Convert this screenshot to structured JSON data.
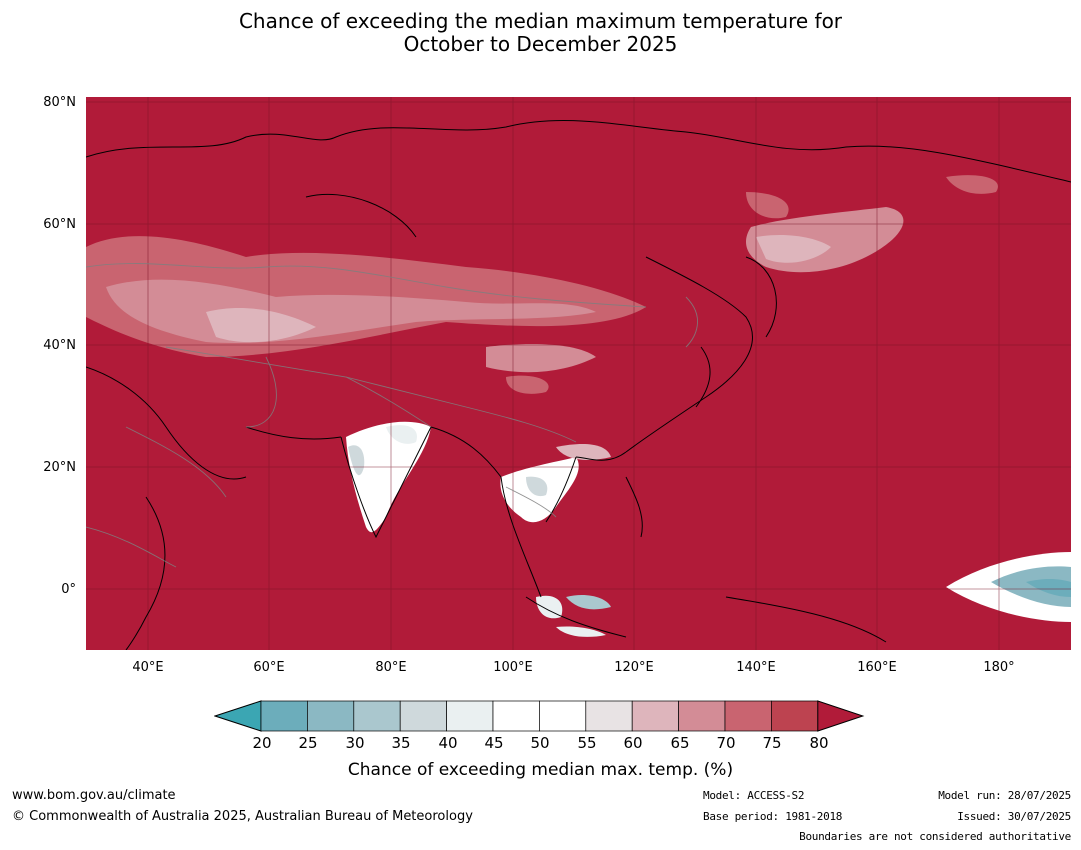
{
  "title": {
    "line1": "Chance of exceeding the median maximum temperature for",
    "line2": "October to December 2025"
  },
  "map": {
    "lat_labels": [
      "80°N",
      "60°N",
      "40°N",
      "20°N",
      "0°"
    ],
    "lon_labels": [
      "40°E",
      "60°E",
      "80°E",
      "100°E",
      "120°E",
      "140°E",
      "160°E",
      "180°"
    ],
    "base_color": "#b11b39"
  },
  "colorbar": {
    "ticks": [
      "20",
      "25",
      "30",
      "35",
      "40",
      "45",
      "50",
      "55",
      "60",
      "65",
      "70",
      "75",
      "80"
    ],
    "colors": [
      "#3ba6b3",
      "#6cadbb",
      "#8bb8c3",
      "#aac7ce",
      "#cfd9dc",
      "#eaf0f1",
      "#ffffff",
      "#ffffff",
      "#e8e3e4",
      "#deb5bc",
      "#d38c96",
      "#c96470",
      "#bd4350",
      "#b11b39"
    ],
    "title": "Chance of exceeding median max. temp. (%)"
  },
  "footer": {
    "website": "www.bom.gov.au/climate",
    "copyright": "© Commonwealth of Australia 2025, Australian Bureau of Meteorology",
    "model": "Model: ACCESS-S2",
    "base_period": "Base period: 1981-2018",
    "model_run": "Model run: 28/07/2025",
    "issued": "Issued: 30/07/2025",
    "disclaimer": "Boundaries are not considered authoritative"
  }
}
